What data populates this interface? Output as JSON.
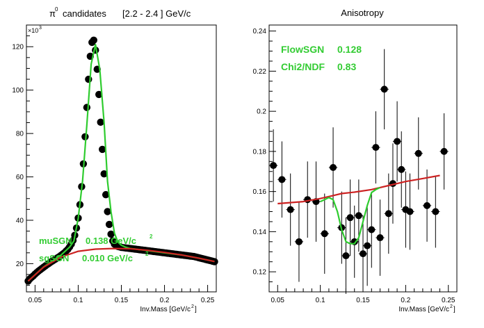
{
  "chart_data": [
    {
      "type": "scatter",
      "title": "candidates",
      "title_symbol": "π",
      "title_superscript": "0",
      "title_range": "[2.2 - 2.4 ] GeV/c",
      "xlabel": "Inv.Mass  [GeV/c",
      "xlabel_superscript": "2",
      "xlabel_close": "]",
      "ylabel": "",
      "y_multiplier_label": "×10",
      "y_multiplier_superscript": "3",
      "xlim": [
        0.04,
        0.26
      ],
      "ylim": [
        7,
        130
      ],
      "x_ticks": [
        0.05,
        0.1,
        0.15,
        0.2,
        0.25
      ],
      "x_tick_labels": [
        "0.05",
        "0.1",
        "0.15",
        "0.2",
        "0.25"
      ],
      "y_ticks": [
        20,
        40,
        60,
        80,
        100,
        120
      ],
      "y_tick_labels": [
        "20",
        "40",
        "60",
        "80",
        "100",
        "120"
      ],
      "grid": false,
      "annotations": [
        {
          "label": "muSGN",
          "value": "0.138 GeV/c",
          "sup": "2"
        },
        {
          "label": "sgSGN",
          "value": "0.010 GeV/c",
          "sup": "2"
        }
      ],
      "series": [
        {
          "kind": "points",
          "x": [
            0.042,
            0.044,
            0.046,
            0.048,
            0.05,
            0.052,
            0.054,
            0.056,
            0.058,
            0.06,
            0.062,
            0.064,
            0.066,
            0.068,
            0.07,
            0.072,
            0.074,
            0.076,
            0.078,
            0.08,
            0.082,
            0.084,
            0.086,
            0.088,
            0.09,
            0.092,
            0.094,
            0.096,
            0.098,
            0.1,
            0.102,
            0.104,
            0.106,
            0.108,
            0.11,
            0.112,
            0.114,
            0.116,
            0.118,
            0.12,
            0.122,
            0.124,
            0.126,
            0.128,
            0.13,
            0.132,
            0.134,
            0.136,
            0.138,
            0.14,
            0.142,
            0.144,
            0.146,
            0.148,
            0.15,
            0.152,
            0.154,
            0.156,
            0.158,
            0.16,
            0.162,
            0.164,
            0.166,
            0.168,
            0.17,
            0.172,
            0.174,
            0.176,
            0.178,
            0.18,
            0.182,
            0.184,
            0.186,
            0.188,
            0.19,
            0.192,
            0.194,
            0.196,
            0.198,
            0.2,
            0.202,
            0.204,
            0.206,
            0.208,
            0.21,
            0.212,
            0.214,
            0.216,
            0.218,
            0.22,
            0.222,
            0.224,
            0.226,
            0.228,
            0.23,
            0.232,
            0.234,
            0.236,
            0.238,
            0.24,
            0.242,
            0.244,
            0.246,
            0.248,
            0.25,
            0.252,
            0.254,
            0.256,
            0.258
          ],
          "y": [
            12.0,
            13.0,
            13.7,
            14.4,
            15.2,
            15.9,
            16.6,
            17.2,
            17.8,
            18.4,
            19.0,
            19.6,
            20.1,
            20.7,
            21.2,
            21.7,
            22.2,
            22.7,
            23.2,
            23.8,
            24.4,
            25.0,
            25.8,
            26.6,
            27.7,
            29.0,
            30.7,
            33.1,
            36.4,
            41.0,
            47.2,
            55.5,
            66.0,
            78.5,
            92.0,
            105.0,
            115.6,
            122.0,
            123.0,
            118.4,
            109.6,
            98.0,
            85.2,
            72.7,
            61.4,
            51.8,
            44.0,
            38.1,
            33.6,
            30.5,
            29.0,
            28.3,
            27.9,
            27.7,
            27.5,
            27.4,
            27.3,
            27.2,
            27.1,
            27.0,
            26.9,
            26.8,
            26.7,
            26.6,
            26.5,
            26.4,
            26.3,
            26.2,
            26.1,
            26.0,
            25.9,
            25.8,
            25.7,
            25.6,
            25.5,
            25.4,
            25.3,
            25.2,
            25.1,
            25.0,
            24.9,
            24.8,
            24.7,
            24.6,
            24.5,
            24.4,
            24.3,
            24.2,
            24.1,
            24.0,
            23.9,
            23.8,
            23.7,
            23.6,
            23.5,
            23.4,
            23.3,
            23.1,
            22.9,
            22.7,
            22.5,
            22.3,
            22.1,
            21.9,
            21.7,
            21.5,
            21.3,
            21.1,
            20.9
          ]
        },
        {
          "kind": "line",
          "color": "#2ecc2e",
          "name": "",
          "x": [
            0.042,
            0.06,
            0.08,
            0.09,
            0.095,
            0.1,
            0.105,
            0.11,
            0.115,
            0.12,
            0.125,
            0.13,
            0.134,
            0.138,
            0.142,
            0.146,
            0.15,
            0.155,
            0.16,
            0.165,
            0.17,
            0.175,
            0.18,
            0.2,
            0.22,
            0.24,
            0.258
          ],
          "y": [
            12.0,
            18.5,
            23.9,
            27.6,
            30.5,
            41.0,
            58.0,
            84.0,
            112.0,
            121.0,
            109.5,
            85.0,
            58.0,
            44.0,
            34.0,
            30.0,
            28.5,
            27.6,
            27.0,
            26.8,
            26.5,
            26.3,
            26.0,
            25.0,
            24.0,
            22.5,
            21.0
          ]
        },
        {
          "kind": "line",
          "color": "#cc2222",
          "name": "",
          "x": [
            0.042,
            0.06,
            0.08,
            0.1,
            0.12,
            0.14,
            0.16,
            0.18,
            0.2,
            0.22,
            0.24,
            0.258
          ],
          "y": [
            12.0,
            18.4,
            23.0,
            25.7,
            26.7,
            27.0,
            26.9,
            26.2,
            25.2,
            24.0,
            22.5,
            21.0
          ]
        }
      ]
    },
    {
      "type": "scatter",
      "title": "Anisotropy",
      "xlabel": "Inv.Mass  [GeV/c",
      "xlabel_superscript": "2",
      "xlabel_close": "]",
      "ylabel": "",
      "xlim": [
        0.04,
        0.26
      ],
      "ylim": [
        0.11,
        0.243
      ],
      "x_ticks": [
        0.05,
        0.1,
        0.15,
        0.2,
        0.25
      ],
      "x_tick_labels": [
        "0.05",
        "0.1",
        "0.15",
        "0.2",
        "0.25"
      ],
      "y_ticks": [
        0.12,
        0.14,
        0.16,
        0.18,
        0.2,
        0.22,
        0.24
      ],
      "y_tick_labels": [
        "0.12",
        "0.14",
        "0.16",
        "0.18",
        "0.2",
        "0.22",
        "0.24"
      ],
      "grid": false,
      "annotations": [
        {
          "label": "FlowSGN",
          "value": "0.128"
        },
        {
          "label": "Chi2/NDF",
          "value": "0.83"
        }
      ],
      "series": [
        {
          "kind": "points_with_errors",
          "x": [
            0.045,
            0.055,
            0.065,
            0.075,
            0.085,
            0.095,
            0.105,
            0.115,
            0.125,
            0.13,
            0.135,
            0.14,
            0.145,
            0.15,
            0.155,
            0.16,
            0.165,
            0.17,
            0.175,
            0.18,
            0.185,
            0.19,
            0.195,
            0.2,
            0.205,
            0.215,
            0.225,
            0.235,
            0.245
          ],
          "y": [
            0.173,
            0.166,
            0.151,
            0.135,
            0.156,
            0.155,
            0.139,
            0.172,
            0.142,
            0.128,
            0.147,
            0.135,
            0.148,
            0.129,
            0.133,
            0.141,
            0.182,
            0.137,
            0.211,
            0.149,
            0.164,
            0.185,
            0.171,
            0.151,
            0.15,
            0.179,
            0.153,
            0.15,
            0.18
          ],
          "err": [
            0.018,
            0.019,
            0.018,
            0.02,
            0.019,
            0.02,
            0.02,
            0.02,
            0.018,
            0.019,
            0.019,
            0.018,
            0.018,
            0.019,
            0.02,
            0.019,
            0.018,
            0.019,
            0.02,
            0.02,
            0.02,
            0.02,
            0.019,
            0.019,
            0.019,
            0.018,
            0.018,
            0.018,
            0.019
          ]
        },
        {
          "kind": "line",
          "color": "#cc2222",
          "name": "",
          "x": [
            0.05,
            0.08,
            0.1,
            0.115,
            0.125,
            0.14,
            0.16,
            0.18,
            0.2,
            0.22,
            0.24
          ],
          "y": [
            0.154,
            0.155,
            0.1565,
            0.158,
            0.159,
            0.1597,
            0.161,
            0.163,
            0.165,
            0.1665,
            0.168
          ]
        },
        {
          "kind": "line",
          "color": "#2ecc2e",
          "name": "",
          "x": [
            0.1,
            0.105,
            0.11,
            0.115,
            0.12,
            0.125,
            0.13,
            0.135,
            0.14,
            0.145,
            0.15,
            0.155,
            0.16,
            0.165,
            0.17
          ],
          "y": [
            0.155,
            0.156,
            0.157,
            0.156,
            0.15,
            0.141,
            0.135,
            0.134,
            0.134,
            0.137,
            0.145,
            0.153,
            0.1595,
            0.161,
            0.162
          ]
        }
      ]
    }
  ]
}
